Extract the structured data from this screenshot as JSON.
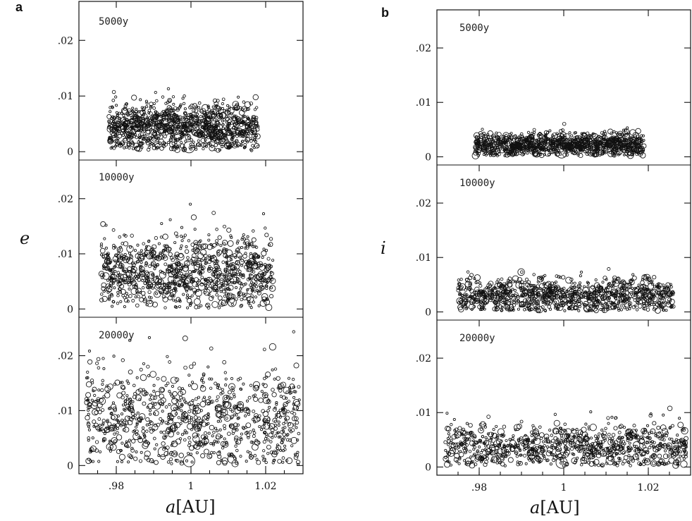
{
  "panels": [
    {
      "tag": "a",
      "ylabel": "e",
      "xlabel_var": "a",
      "xlabel_unit": "[AU]",
      "x_ticks": [
        ".98",
        "1",
        "1.02"
      ],
      "y_ticks": [
        "0",
        ".01",
        ".02"
      ]
    },
    {
      "tag": "b",
      "ylabel": "i",
      "xlabel_var": "a",
      "xlabel_unit": "[AU]",
      "x_ticks": [
        ".98",
        "1",
        "1.02"
      ],
      "y_ticks": [
        "0",
        ".01",
        ".02"
      ]
    }
  ],
  "chart_data": [
    {
      "type": "scatter",
      "panel": "a",
      "subplot_label": "5000y",
      "xlabel": "a[AU]",
      "ylabel": "e",
      "xlim": [
        0.97,
        1.03
      ],
      "ylim": [
        -0.0015,
        0.027
      ],
      "distribution": {
        "x_range": [
          0.978,
          1.018
        ],
        "y_mean": 0.0045,
        "y_spread": 0.0022,
        "y_max": 0.014,
        "n": 1100
      }
    },
    {
      "type": "scatter",
      "panel": "a",
      "subplot_label": "10000y",
      "xlabel": "a[AU]",
      "ylabel": "e",
      "xlim": [
        0.97,
        1.03
      ],
      "ylim": [
        -0.0015,
        0.027
      ],
      "distribution": {
        "x_range": [
          0.976,
          1.022
        ],
        "y_mean": 0.0065,
        "y_spread": 0.0033,
        "y_max": 0.022,
        "n": 1000
      }
    },
    {
      "type": "scatter",
      "panel": "a",
      "subplot_label": "20000y",
      "xlabel": "a[AU]",
      "ylabel": "e",
      "xlim": [
        0.97,
        1.03
      ],
      "ylim": [
        -0.0015,
        0.027
      ],
      "distribution": {
        "x_range": [
          0.972,
          1.029
        ],
        "y_mean": 0.0085,
        "y_spread": 0.0045,
        "y_max": 0.025,
        "n": 900
      }
    },
    {
      "type": "scatter",
      "panel": "b",
      "subplot_label": "5000y",
      "xlabel": "a[AU]",
      "ylabel": "i",
      "xlim": [
        0.97,
        1.03
      ],
      "ylim": [
        -0.0015,
        0.027
      ],
      "distribution": {
        "x_range": [
          0.979,
          1.019
        ],
        "y_mean": 0.0022,
        "y_spread": 0.0011,
        "y_max": 0.0068,
        "n": 1100
      }
    },
    {
      "type": "scatter",
      "panel": "b",
      "subplot_label": "10000y",
      "xlabel": "a[AU]",
      "ylabel": "i",
      "xlim": [
        0.97,
        1.03
      ],
      "ylim": [
        -0.0015,
        0.027
      ],
      "distribution": {
        "x_range": [
          0.975,
          1.026
        ],
        "y_mean": 0.003,
        "y_spread": 0.0016,
        "y_max": 0.008,
        "n": 1000
      }
    },
    {
      "type": "scatter",
      "panel": "b",
      "subplot_label": "20000y",
      "xlabel": "a[AU]",
      "ylabel": "i",
      "xlim": [
        0.97,
        1.03
      ],
      "ylim": [
        -0.0015,
        0.027
      ],
      "distribution": {
        "x_range": [
          0.972,
          1.029
        ],
        "y_mean": 0.0038,
        "y_spread": 0.0022,
        "y_max": 0.0155,
        "n": 900
      }
    }
  ]
}
